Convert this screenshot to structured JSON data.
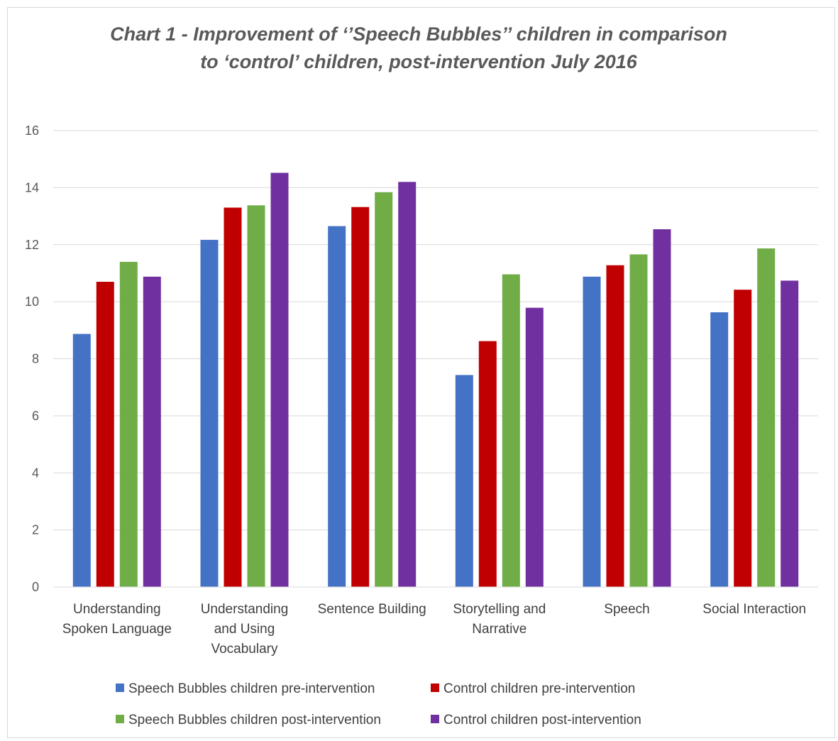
{
  "chart_data": {
    "type": "bar",
    "title": "Chart 1 - Improvement of ‘’Speech Bubbles’’ children in comparison to ‘control’ children, post-intervention July 2016",
    "title_lines": [
      "Chart 1 - Improvement of ‘’Speech Bubbles’’ children in comparison",
      "to ‘control’ children, post-intervention July 2016"
    ],
    "xlabel": "",
    "ylabel": "",
    "ylim": [
      0,
      16
    ],
    "yticks": [
      "0",
      "2",
      "4",
      "6",
      "8",
      "10",
      "12",
      "14",
      "16"
    ],
    "grid": true,
    "legend_position": "bottom",
    "categories": [
      "Understanding Spoken Language",
      "Understanding and Using Vocabulary",
      "Sentence Building",
      "Storytelling and Narrative",
      "Speech",
      "Social Interaction"
    ],
    "category_lines": [
      [
        "Understanding",
        "Spoken Language"
      ],
      [
        "Understanding",
        "and Using",
        "Vocabulary"
      ],
      [
        "Sentence Building"
      ],
      [
        "Storytelling and",
        "Narrative"
      ],
      [
        "Speech"
      ],
      [
        "Social Interaction"
      ]
    ],
    "series": [
      {
        "name": "Speech Bubbles children pre-intervention",
        "color": "#4472C4",
        "values": [
          8.87,
          12.17,
          12.65,
          7.43,
          10.88,
          9.63
        ]
      },
      {
        "name": "Control children pre-intervention",
        "color": "#C00000",
        "values": [
          10.7,
          13.3,
          13.32,
          8.62,
          11.28,
          10.42
        ]
      },
      {
        "name": "Speech Bubbles children post-intervention",
        "color": "#70AD47",
        "values": [
          11.4,
          13.38,
          13.84,
          10.96,
          11.66,
          11.87
        ]
      },
      {
        "name": "Control children post-intervention",
        "color": "#7030A0",
        "values": [
          10.88,
          14.52,
          14.2,
          9.79,
          12.54,
          10.74
        ]
      }
    ]
  }
}
